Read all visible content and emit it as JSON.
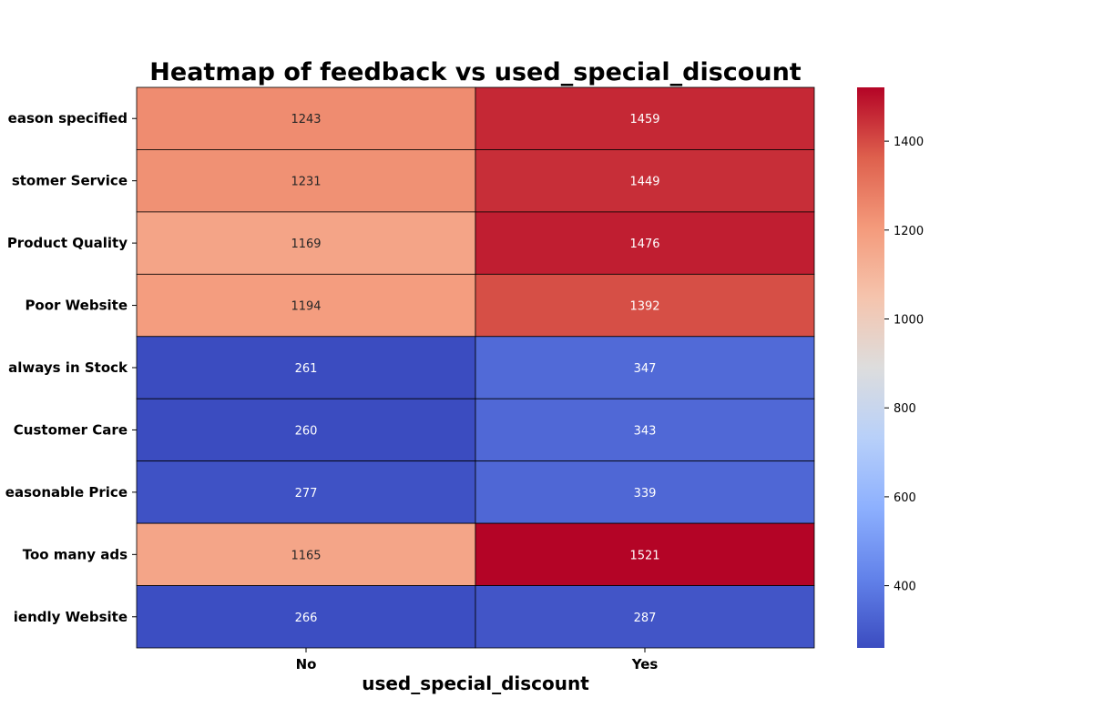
{
  "chart_data": {
    "type": "heatmap",
    "title": "Heatmap of feedback vs used_special_discount",
    "xlabel": "used_special_discount",
    "ylabel": "",
    "x_categories": [
      "No",
      "Yes"
    ],
    "y_categories": [
      "Reason specified",
      "Customer Service",
      "Product Quality",
      "Poor Website",
      "always in Stock",
      "Customer Care",
      "Reasonable Price",
      "Too many ads",
      "Friendly Website"
    ],
    "y_tick_display": [
      "eason specified",
      "stomer Service",
      "Product Quality",
      "Poor Website",
      "always in Stock",
      "Customer Care",
      "easonable Price",
      "Too many ads",
      "iendly Website"
    ],
    "values": [
      [
        1243,
        1459
      ],
      [
        1231,
        1449
      ],
      [
        1169,
        1476
      ],
      [
        1194,
        1392
      ],
      [
        261,
        347
      ],
      [
        260,
        343
      ],
      [
        277,
        339
      ],
      [
        1165,
        1521
      ],
      [
        266,
        287
      ]
    ],
    "colormap": "coolwarm",
    "vmin": 260,
    "vmax": 1521,
    "colorbar_ticks": [
      400,
      600,
      800,
      1000,
      1200,
      1400
    ],
    "grid": false,
    "legend": "colorbar-right"
  }
}
